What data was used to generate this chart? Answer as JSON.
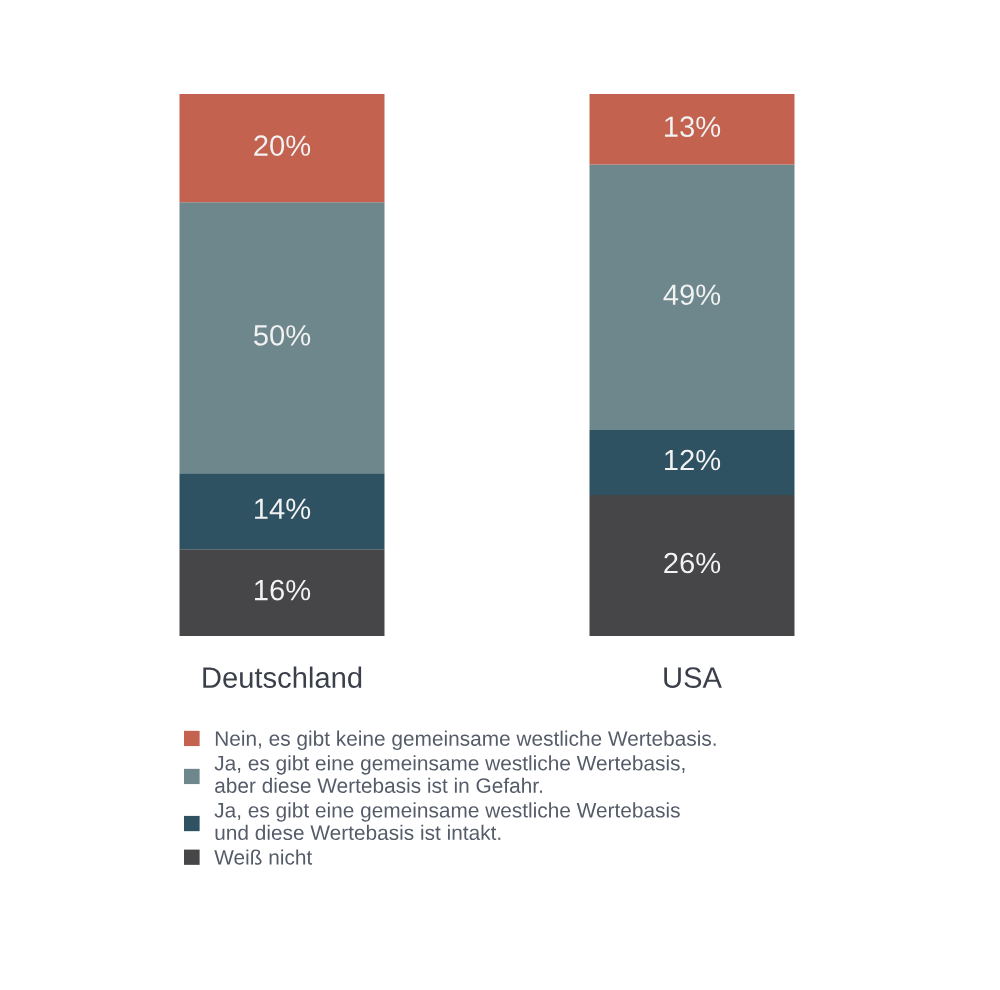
{
  "chart_data": {
    "type": "bar",
    "stacked": true,
    "categories": [
      "Deutschland",
      "USA"
    ],
    "series": [
      {
        "name": "Weiß nicht",
        "color": "#464648",
        "values": [
          16,
          26
        ],
        "value_labels": [
          "16%",
          "26%"
        ]
      },
      {
        "name": "Ja, es gibt eine gemeinsame westliche Wertebasis\nund diese Wertebasis ist intakt.",
        "color": "#2e5262",
        "values": [
          14,
          12
        ],
        "value_labels": [
          "14%",
          "12%"
        ]
      },
      {
        "name": "Ja, es gibt eine gemeinsame westliche Wertebasis,\naber diese Wertebasis ist in Gefahr.",
        "color": "#6d878c",
        "values": [
          50,
          49
        ],
        "value_labels": [
          "50%",
          "49%"
        ]
      },
      {
        "name": "Nein, es gibt keine gemeinsame westliche Wertebasis.",
        "color": "#c2624f",
        "values": [
          20,
          13
        ],
        "value_labels": [
          "20%",
          "13%"
        ]
      }
    ],
    "legend": "bottom",
    "grid": false,
    "tick_labels": "x"
  }
}
